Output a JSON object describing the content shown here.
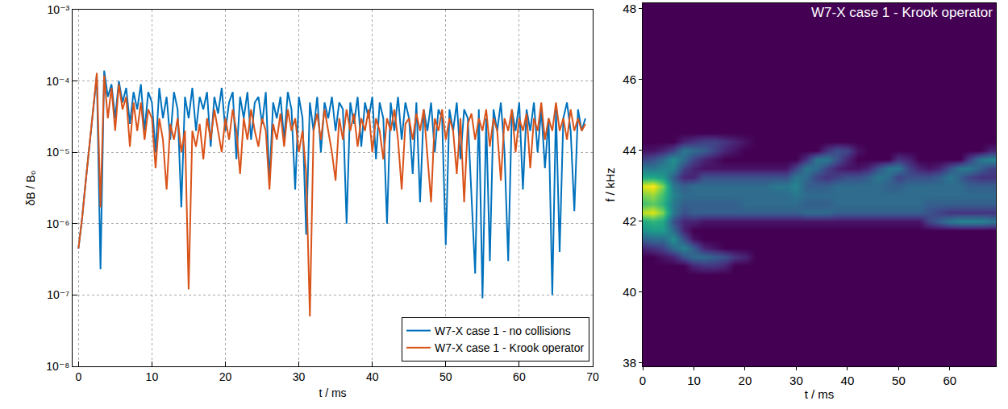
{
  "chart_data": [
    {
      "type": "line",
      "x_label": "t / ms",
      "y_label": "δB / B₀",
      "xlim": [
        -0.8,
        70
      ],
      "ylim": [
        1e-08,
        0.001
      ],
      "xticks": [
        0,
        10,
        20,
        30,
        40,
        50,
        60,
        70
      ],
      "yticks": [
        {
          "value": 1e-08,
          "label": "10⁻⁸"
        },
        {
          "value": 1e-07,
          "label": "10⁻⁷"
        },
        {
          "value": 1e-06,
          "label": "10⁻⁶"
        },
        {
          "value": 1e-05,
          "label": "10⁻⁵"
        },
        {
          "value": 0.0001,
          "label": "10⁻⁴"
        },
        {
          "value": 0.001,
          "label": "10⁻³"
        }
      ],
      "log": "y",
      "grid": true,
      "legend": "lower right",
      "x": [
        0,
        0.5,
        1,
        1.5,
        2,
        2.5,
        3,
        3.5,
        4,
        4.5,
        5,
        5.5,
        6,
        6.5,
        7,
        7.5,
        8,
        8.5,
        9,
        9.5,
        10,
        10.5,
        11,
        11.5,
        12,
        12.5,
        13,
        13.5,
        14,
        14.5,
        15,
        15.5,
        16,
        16.5,
        17,
        17.5,
        18,
        18.5,
        19,
        19.5,
        20,
        20.5,
        21,
        21.5,
        22,
        22.5,
        23,
        23.5,
        24,
        24.5,
        25,
        25.5,
        26,
        26.5,
        27,
        27.5,
        28,
        28.5,
        29,
        29.5,
        30,
        30.5,
        31,
        31.5,
        32,
        32.5,
        33,
        33.5,
        34,
        34.5,
        35,
        35.5,
        36,
        36.5,
        37,
        37.5,
        38,
        38.5,
        39,
        39.5,
        40,
        40.5,
        41,
        41.5,
        42,
        42.5,
        43,
        43.5,
        44,
        44.5,
        45,
        45.5,
        46,
        46.5,
        47,
        47.5,
        48,
        48.5,
        49,
        49.5,
        50,
        50.5,
        51,
        51.5,
        52,
        52.5,
        53,
        53.5,
        54,
        54.5,
        55,
        55.5,
        56,
        56.5,
        57,
        57.5,
        58,
        58.5,
        59,
        59.5,
        60,
        60.5,
        61,
        61.5,
        62,
        62.5,
        63,
        63.5,
        64,
        64.5,
        65,
        65.5,
        66,
        66.5,
        67,
        67.5,
        68,
        68.5,
        69
      ],
      "series": [
        {
          "name": "W7-X case 1 - no collisions",
          "color": "#0072bd",
          "values": [
            4.5e-07,
            1.2e-06,
            4e-06,
            1.2e-05,
            4e-05,
            0.00012,
            2.3e-07,
            0.00014,
            6e-05,
            9e-05,
            3e-05,
            0.0001,
            5e-05,
            8e-05,
            2.5e-05,
            7e-05,
            4e-05,
            9e-05,
            2e-05,
            7e-05,
            5e-05,
            1e-05,
            8e-05,
            3e-05,
            6e-05,
            1.5e-05,
            7e-05,
            4e-05,
            1.7e-06,
            6e-05,
            3e-05,
            8e-05,
            2e-05,
            6e-05,
            4e-05,
            7e-05,
            1.2e-05,
            6e-05,
            3.5e-05,
            8e-05,
            2e-05,
            5e-05,
            7e-05,
            8e-06,
            6e-05,
            3e-05,
            7e-05,
            1.5e-05,
            5e-05,
            6e-05,
            2.5e-05,
            7e-05,
            4e-06,
            5e-05,
            3e-05,
            6e-05,
            1.5e-05,
            7e-05,
            4e-05,
            3e-06,
            6e-05,
            3e-05,
            7e-07,
            5e-05,
            2e-05,
            6e-05,
            1e-05,
            5e-05,
            3e-05,
            6e-05,
            2e-05,
            5e-05,
            4e-05,
            1e-06,
            5e-05,
            2.5e-05,
            6e-05,
            1.2e-05,
            5e-05,
            3e-05,
            6e-05,
            8e-06,
            5e-05,
            3e-05,
            1e-06,
            5e-05,
            2e-05,
            6e-05,
            1.5e-05,
            5e-05,
            3e-05,
            5e-06,
            5e-05,
            2e-06,
            4e-05,
            2e-05,
            5e-05,
            1e-05,
            4e-05,
            3e-05,
            5e-07,
            4e-05,
            2e-05,
            5e-05,
            8e-06,
            4e-05,
            3e-05,
            2e-06,
            2e-07,
            4e-05,
            9e-08,
            3e-05,
            3e-07,
            4e-05,
            2e-05,
            5e-05,
            1e-05,
            3e-07,
            4e-05,
            2e-05,
            5e-05,
            3e-06,
            4e-05,
            2e-05,
            5e-05,
            1e-05,
            4e-05,
            6e-06,
            3e-05,
            1e-07,
            4e-05,
            4e-07,
            3e-05,
            5e-05,
            2e-05,
            1.5e-06,
            4e-05,
            2e-05,
            3e-05
          ]
        },
        {
          "name": "W7-X case 1 - Krook operator",
          "color": "#d95319",
          "values": [
            4.5e-07,
            1.2e-06,
            4e-06,
            1.2e-05,
            4e-05,
            0.00013,
            1.7e-06,
            0.00012,
            3e-05,
            8e-05,
            2e-05,
            9e-05,
            4e-05,
            6e-05,
            1.2e-05,
            5e-05,
            2e-05,
            5e-05,
            1.5e-05,
            4e-05,
            3e-05,
            6e-06,
            3e-05,
            1.5e-05,
            3e-06,
            2.5e-05,
            1.5e-05,
            3e-05,
            1e-05,
            2e-05,
            1.2e-07,
            2e-05,
            1.2e-05,
            2.5e-05,
            8e-06,
            3e-05,
            1.5e-05,
            4e-05,
            2e-05,
            1e-05,
            3e-05,
            1.5e-05,
            4e-05,
            2e-05,
            5e-06,
            3e-05,
            1.5e-05,
            4e-05,
            2e-05,
            1.2e-05,
            3e-05,
            2e-05,
            3e-06,
            2.5e-05,
            1.5e-05,
            3.5e-05,
            1.2e-05,
            4e-05,
            2e-05,
            3e-05,
            1e-05,
            2e-05,
            5e-06,
            5e-08,
            2e-05,
            3.5e-05,
            1.5e-05,
            4e-05,
            2e-05,
            1e-05,
            4e-06,
            3e-05,
            1.5e-05,
            4e-05,
            2e-05,
            3.5e-05,
            1.2e-05,
            3e-05,
            2e-05,
            4e-05,
            1e-05,
            3e-05,
            2e-05,
            8e-06,
            3e-05,
            2e-05,
            4e-05,
            1.5e-05,
            3e-06,
            2.5e-05,
            3e-05,
            1.5e-05,
            3.5e-05,
            2e-05,
            4e-05,
            1e-05,
            2e-06,
            3e-05,
            2e-05,
            4e-05,
            1.5e-05,
            3e-05,
            2e-05,
            5e-06,
            3e-05,
            2e-06,
            2.5e-05,
            3.5e-05,
            1.5e-05,
            3e-05,
            2e-05,
            4e-05,
            1.2e-05,
            3e-05,
            2e-05,
            4e-06,
            3e-05,
            2e-05,
            4e-05,
            1e-05,
            3e-05,
            2e-05,
            3.5e-05,
            6e-06,
            3e-05,
            2e-05,
            5e-05,
            1.5e-05,
            3e-05,
            2e-05,
            5e-05,
            2e-05,
            3e-05,
            1.5e-05,
            4e-05,
            2e-05,
            3e-05,
            2e-05,
            2.5e-05
          ]
        }
      ]
    },
    {
      "type": "heatmap",
      "title": "W7-X case 1 - Krook operator",
      "x_label": "t / ms",
      "y_label": "f / kHz",
      "xlim": [
        0,
        69
      ],
      "ylim": [
        37.9,
        48.15
      ],
      "xticks": [
        0,
        10,
        20,
        30,
        40,
        50,
        60
      ],
      "yticks": [
        38,
        40,
        42,
        44,
        46,
        48
      ],
      "grid": false,
      "x": [
        0,
        2,
        4,
        6,
        8,
        10,
        12,
        14,
        16,
        18,
        20,
        22,
        24,
        26,
        28,
        30,
        32,
        34,
        36,
        38,
        40,
        42,
        44,
        46,
        48,
        50,
        52,
        54,
        56,
        58,
        60,
        62,
        64,
        66,
        68
      ],
      "y": [
        40.5,
        40.75,
        41,
        41.25,
        41.5,
        41.75,
        42,
        42.25,
        42.5,
        42.75,
        43,
        43.25,
        43.5,
        43.75,
        44,
        44.25,
        44.5
      ],
      "zlim": [
        0,
        1
      ],
      "z": [
        [
          0,
          0,
          0,
          0,
          0,
          0,
          0,
          0,
          0,
          0,
          0,
          0,
          0,
          0,
          0,
          0,
          0,
          0,
          0,
          0,
          0,
          0,
          0,
          0,
          0,
          0,
          0,
          0,
          0,
          0,
          0,
          0,
          0,
          0,
          0
        ],
        [
          0,
          0,
          0,
          0,
          0,
          0.1,
          0.15,
          0.15,
          0.1,
          0,
          0,
          0,
          0,
          0,
          0,
          0,
          0,
          0,
          0,
          0,
          0,
          0,
          0,
          0,
          0,
          0,
          0,
          0,
          0,
          0,
          0,
          0,
          0,
          0,
          0
        ],
        [
          0,
          0,
          0.05,
          0.1,
          0.25,
          0.35,
          0.35,
          0.3,
          0.25,
          0.15,
          0.1,
          0,
          0,
          0,
          0,
          0,
          0,
          0,
          0,
          0,
          0,
          0,
          0,
          0,
          0,
          0,
          0,
          0,
          0,
          0,
          0,
          0,
          0,
          0,
          0
        ],
        [
          0.1,
          0.15,
          0.2,
          0.35,
          0.45,
          0.3,
          0.1,
          0.05,
          0,
          0,
          0,
          0,
          0,
          0,
          0,
          0,
          0,
          0,
          0,
          0,
          0,
          0,
          0,
          0,
          0,
          0,
          0,
          0,
          0,
          0,
          0,
          0,
          0,
          0,
          0
        ],
        [
          0.3,
          0.35,
          0.35,
          0.5,
          0.25,
          0.05,
          0,
          0,
          0,
          0,
          0,
          0,
          0,
          0,
          0,
          0,
          0,
          0,
          0,
          0,
          0,
          0,
          0,
          0,
          0,
          0,
          0,
          0,
          0,
          0,
          0,
          0,
          0,
          0,
          0
        ],
        [
          0.5,
          0.55,
          0.55,
          0.35,
          0.1,
          0,
          0,
          0,
          0,
          0,
          0,
          0,
          0,
          0,
          0,
          0,
          0,
          0,
          0,
          0,
          0,
          0,
          0,
          0,
          0,
          0,
          0,
          0,
          0,
          0,
          0,
          0,
          0,
          0,
          0
        ],
        [
          0.6,
          0.65,
          0.6,
          0.25,
          0.1,
          0.1,
          0.05,
          0.05,
          0.05,
          0.05,
          0.05,
          0.05,
          0.05,
          0.05,
          0.05,
          0.05,
          0.05,
          0.05,
          0.05,
          0.05,
          0.05,
          0.05,
          0.05,
          0.05,
          0.05,
          0.05,
          0.05,
          0.05,
          0.2,
          0.3,
          0.4,
          0.45,
          0.45,
          0.45,
          0.4
        ],
        [
          0.9,
          0.95,
          0.8,
          0.4,
          0.25,
          0.3,
          0.3,
          0.3,
          0.3,
          0.3,
          0.3,
          0.3,
          0.3,
          0.3,
          0.3,
          0.3,
          0.35,
          0.35,
          0.35,
          0.3,
          0.3,
          0.3,
          0.3,
          0.3,
          0.3,
          0.3,
          0.3,
          0.3,
          0.25,
          0.2,
          0.15,
          0.15,
          0.15,
          0.15,
          0.15
        ],
        [
          0.7,
          0.75,
          0.65,
          0.4,
          0.3,
          0.3,
          0.3,
          0.3,
          0.3,
          0.3,
          0.35,
          0.35,
          0.35,
          0.35,
          0.35,
          0.35,
          0.3,
          0.3,
          0.3,
          0.35,
          0.35,
          0.35,
          0.35,
          0.35,
          0.35,
          0.35,
          0.35,
          0.35,
          0.3,
          0.3,
          0.3,
          0.3,
          0.3,
          0.3,
          0.3
        ],
        [
          0.8,
          0.85,
          0.7,
          0.45,
          0.35,
          0.35,
          0.35,
          0.35,
          0.35,
          0.35,
          0.35,
          0.35,
          0.35,
          0.35,
          0.35,
          0.4,
          0.35,
          0.35,
          0.35,
          0.35,
          0.35,
          0.35,
          0.35,
          0.35,
          0.35,
          0.35,
          0.35,
          0.35,
          0.35,
          0.35,
          0.35,
          0.35,
          0.35,
          0.35,
          0.35
        ],
        [
          0.95,
          1,
          0.8,
          0.4,
          0.3,
          0.35,
          0.35,
          0.35,
          0.35,
          0.35,
          0.35,
          0.35,
          0.35,
          0.4,
          0.4,
          0.45,
          0.3,
          0.3,
          0.3,
          0.35,
          0.35,
          0.35,
          0.35,
          0.35,
          0.3,
          0.3,
          0.35,
          0.35,
          0.35,
          0.35,
          0.35,
          0.35,
          0.3,
          0.3,
          0.3
        ],
        [
          0.6,
          0.6,
          0.55,
          0.3,
          0.1,
          0.1,
          0.25,
          0.25,
          0.25,
          0.25,
          0.25,
          0.25,
          0.25,
          0.25,
          0.25,
          0.4,
          0.35,
          0.2,
          0.15,
          0.2,
          0.25,
          0.25,
          0.3,
          0.4,
          0.35,
          0.2,
          0.25,
          0.25,
          0.25,
          0.3,
          0.4,
          0.3,
          0.2,
          0.15,
          0.15
        ],
        [
          0.4,
          0.4,
          0.45,
          0.45,
          0.2,
          0.1,
          0.05,
          0.05,
          0.05,
          0.05,
          0.05,
          0.05,
          0.05,
          0.05,
          0.05,
          0.2,
          0.4,
          0.35,
          0.2,
          0.1,
          0.05,
          0.05,
          0.1,
          0.25,
          0.4,
          0.4,
          0.2,
          0.1,
          0.05,
          0.1,
          0.25,
          0.4,
          0.4,
          0.3,
          0.2
        ],
        [
          0.2,
          0.25,
          0.35,
          0.5,
          0.35,
          0.2,
          0.1,
          0.05,
          0,
          0,
          0,
          0,
          0,
          0,
          0,
          0,
          0.15,
          0.4,
          0.4,
          0.25,
          0.1,
          0,
          0,
          0,
          0,
          0.15,
          0.1,
          0,
          0,
          0,
          0,
          0,
          0.2,
          0.4,
          0.45
        ],
        [
          0.05,
          0.05,
          0.1,
          0.2,
          0.4,
          0.35,
          0.3,
          0.2,
          0.1,
          0.05,
          0,
          0,
          0,
          0,
          0,
          0,
          0,
          0,
          0.15,
          0.25,
          0.2,
          0.05,
          0,
          0,
          0,
          0,
          0,
          0,
          0,
          0,
          0,
          0,
          0,
          0,
          0.1
        ],
        [
          0,
          0,
          0,
          0,
          0.1,
          0.15,
          0.2,
          0.2,
          0.15,
          0.1,
          0.05,
          0,
          0,
          0,
          0,
          0,
          0,
          0,
          0,
          0,
          0,
          0,
          0,
          0,
          0,
          0,
          0,
          0,
          0,
          0,
          0,
          0,
          0,
          0,
          0
        ],
        [
          0,
          0,
          0,
          0,
          0,
          0,
          0,
          0,
          0,
          0,
          0,
          0,
          0,
          0,
          0,
          0,
          0,
          0,
          0,
          0,
          0,
          0,
          0,
          0,
          0,
          0,
          0,
          0,
          0,
          0,
          0,
          0,
          0,
          0,
          0
        ]
      ]
    }
  ]
}
